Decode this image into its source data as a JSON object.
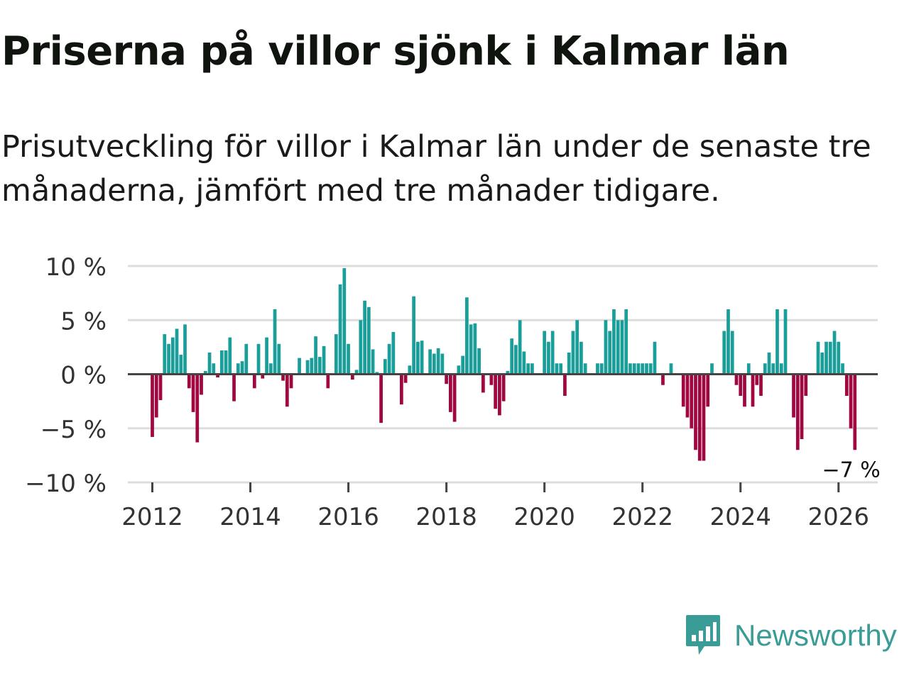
{
  "title": "Priserna på villor sjönk i Kalmar län",
  "subtitle": "Prisutveckling för villor i Kalmar län under de senaste tre månaderna, jämfört med tre månader tidigare.",
  "brand": {
    "name": "Newsworthy",
    "color": "#3a9c96",
    "icon": "newsworthy-logo-icon"
  },
  "colors": {
    "positive": "#1a9e9a",
    "negative": "#a0063f",
    "grid": "#dddddd",
    "baseline": "#444444",
    "axis_text": "#333333"
  },
  "chart_data": {
    "type": "bar",
    "title": "Priserna på villor sjönk i Kalmar län",
    "xlabel": "",
    "ylabel": "",
    "ylim": [
      -10,
      10
    ],
    "yticks": [
      10,
      5,
      0,
      -5,
      -10
    ],
    "ytick_labels": [
      "10 %",
      "5 %",
      "0 %",
      "−5 %",
      "−10 %"
    ],
    "xlim": [
      2011.5,
      2026.8
    ],
    "xticks": [
      2012,
      2014,
      2016,
      2018,
      2020,
      2022,
      2024,
      2026
    ],
    "xtick_labels": [
      "2012",
      "2014",
      "2016",
      "2018",
      "2020",
      "2022",
      "2024",
      "2026"
    ],
    "grid": true,
    "start": [
      2012,
      1
    ],
    "series": [
      {
        "name": "Prisutveckling (%)",
        "unit": "%",
        "values": [
          -5.8,
          -4.0,
          -2.4,
          3.7,
          2.8,
          3.4,
          4.2,
          1.8,
          4.6,
          -1.3,
          -3.5,
          -6.3,
          -1.9,
          0.3,
          2.0,
          1.0,
          -0.3,
          2.2,
          2.2,
          3.4,
          -2.5,
          1.0,
          1.2,
          2.8,
          0.0,
          -1.3,
          2.8,
          -0.4,
          3.4,
          1.0,
          6.0,
          2.8,
          -0.6,
          -3.0,
          -1.3,
          0.0,
          1.5,
          0.0,
          1.3,
          1.5,
          3.5,
          1.6,
          2.6,
          -1.3,
          0.0,
          3.7,
          8.3,
          9.8,
          2.8,
          -0.5,
          0.4,
          5.0,
          6.8,
          6.2,
          2.3,
          0.2,
          -4.5,
          1.4,
          2.8,
          3.9,
          0.0,
          -2.8,
          -0.8,
          0.8,
          7.2,
          3.0,
          3.1,
          0.0,
          2.3,
          1.9,
          2.4,
          1.9,
          -0.9,
          -3.5,
          -4.4,
          0.8,
          1.7,
          7.1,
          4.6,
          4.7,
          2.4,
          -1.7,
          0.0,
          -1.0,
          -3.2,
          -3.8,
          -2.5,
          0.3,
          3.3,
          2.7,
          5.0,
          2.1,
          1.0,
          1.0,
          0.0,
          0.0,
          4.0,
          3.0,
          4.0,
          1.0,
          1.0,
          -2.0,
          2.0,
          4.0,
          5.0,
          3.0,
          1.0,
          0.0,
          0.0,
          1.0,
          1.0,
          5.0,
          4.0,
          6.0,
          5.0,
          5.0,
          6.0,
          1.0,
          1.0,
          1.0,
          1.0,
          1.0,
          1.0,
          3.0,
          0.0,
          -1.0,
          0.0,
          1.0,
          0.0,
          0.0,
          -3.0,
          -4.0,
          -5.0,
          -7.0,
          -8.0,
          -8.0,
          -3.0,
          1.0,
          0.0,
          0.0,
          4.0,
          6.0,
          4.0,
          -1.0,
          -2.0,
          -3.0,
          1.0,
          -3.0,
          -1.0,
          -2.0,
          1.0,
          2.0,
          1.0,
          6.0,
          1.0,
          6.0,
          0.0,
          -4.0,
          -7.0,
          -6.0,
          -2.0,
          0.0,
          0.0,
          3.0,
          2.0,
          3.0,
          3.0,
          4.0,
          3.0,
          1.0,
          -2.0,
          -5.0,
          -7.0
        ]
      }
    ],
    "annotations": [
      {
        "label": "−7 %",
        "value": -7,
        "target": "last"
      }
    ]
  }
}
